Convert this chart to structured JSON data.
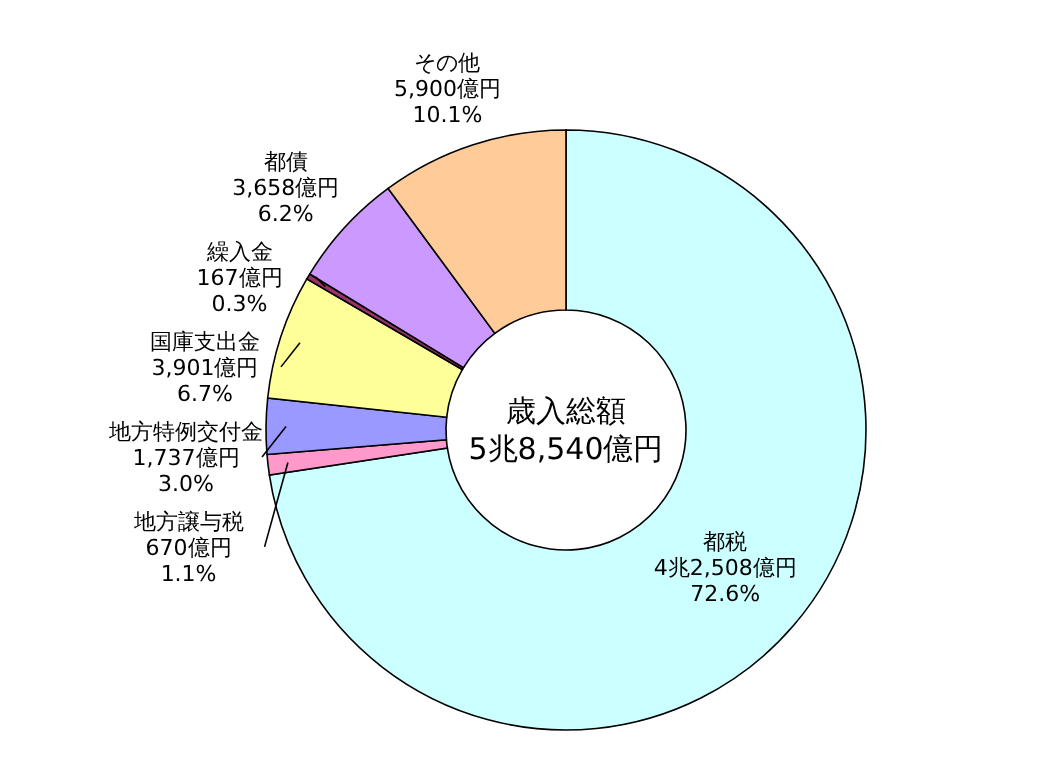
{
  "chart_data": {
    "type": "donut",
    "categories": [
      "都税",
      "地方譲与税",
      "地方特例交付金",
      "国庫支出金",
      "繰入金",
      "都債",
      "その他"
    ],
    "values": [
      72.6,
      1.1,
      3.0,
      6.7,
      0.3,
      6.2,
      10.1
    ],
    "colors": [
      "#ccffff",
      "#ff99cc",
      "#9999ff",
      "#ffff99",
      "#993366",
      "#cc99ff",
      "#ffcc99"
    ],
    "value_labels": [
      "4兆2,508億円\n72.6%",
      "670億円\n1.1%",
      "1,737億円\n3.0%",
      "3,901億円\n6.7%",
      "167億円\n0.3%",
      "3,658億円\n6.2%",
      "5,900億円\n10.1%"
    ],
    "annotations": [
      "歳入総額",
      "5兆8,540億円"
    ]
  }
}
